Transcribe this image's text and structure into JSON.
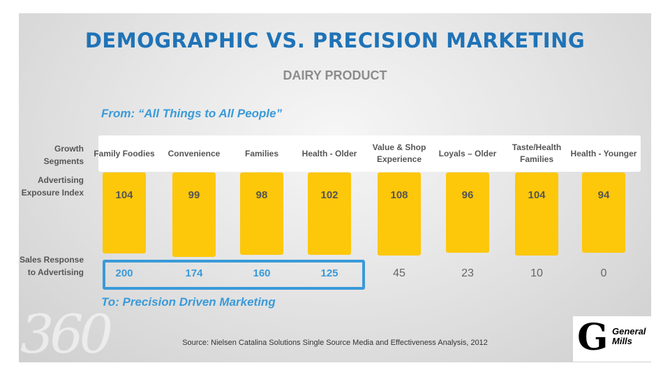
{
  "slide": {
    "title": "DEMOGRAPHIC VS. PRECISION MARKETING",
    "subtitle": "DAIRY PRODUCT",
    "from_text": "From: “All Things to All People”",
    "to_text": "To: Precision Driven Marketing",
    "row_labels": {
      "growth": "Growth Segments",
      "advertising": "Advertising Exposure Index",
      "sales": "Sales Response to Advertising"
    },
    "segments": [
      {
        "name": "Family Foodies",
        "index": "104",
        "sales": "200",
        "highlight": true
      },
      {
        "name": "Convenience",
        "index": "99",
        "sales": "174",
        "highlight": true
      },
      {
        "name": "Families",
        "index": "98",
        "sales": "160",
        "highlight": true
      },
      {
        "name": "Health - Older",
        "index": "102",
        "sales": "125",
        "highlight": true
      },
      {
        "name": "Value & Shop Experience",
        "index": "108",
        "sales": "45",
        "highlight": false
      },
      {
        "name": "Loyals – Older",
        "index": "96",
        "sales": "23",
        "highlight": false
      },
      {
        "name": "Taste/Health Families",
        "index": "104",
        "sales": "10",
        "highlight": false
      },
      {
        "name": "Health - Younger",
        "index": "94",
        "sales": "0",
        "highlight": false
      }
    ],
    "source": "Source: Nielsen Catalina Solutions Single Source Media and Effectiveness Analysis, 2012",
    "watermark": "360",
    "logo": {
      "line1": "General",
      "line2": "Mills",
      "glyph": "G"
    },
    "colors": {
      "accent": "#1f73b7",
      "highlight_blue": "#3a9ad9",
      "bar": "#fdc70a"
    }
  }
}
